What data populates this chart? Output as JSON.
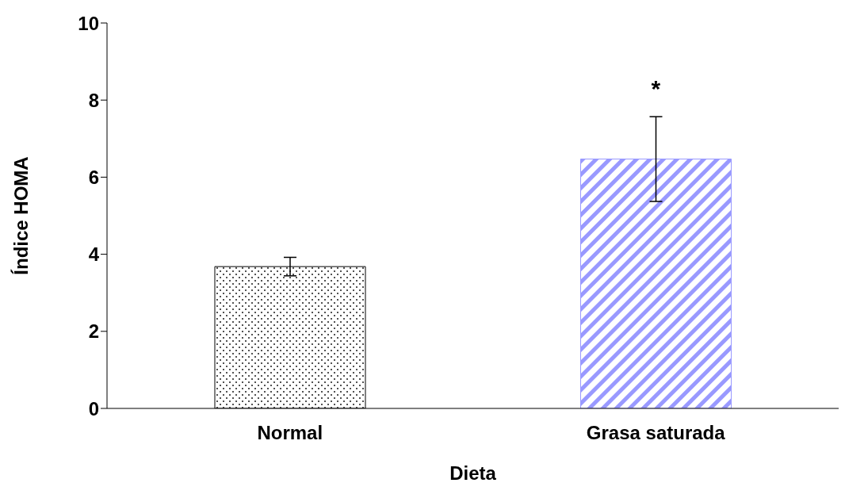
{
  "chart_data": {
    "type": "bar",
    "categories": [
      "Normal",
      "Grasa saturada"
    ],
    "values": [
      3.68,
      6.47
    ],
    "errors": [
      0.24,
      1.1
    ],
    "colors": [
      "#000000",
      "#9999ff"
    ],
    "xlabel": "Dieta",
    "ylabel": "Índice HOMA",
    "ylim": [
      0,
      10
    ],
    "yticks": [
      0,
      2,
      4,
      6,
      8,
      10
    ],
    "annotations": [
      "*"
    ],
    "grid": false,
    "legend": false
  }
}
